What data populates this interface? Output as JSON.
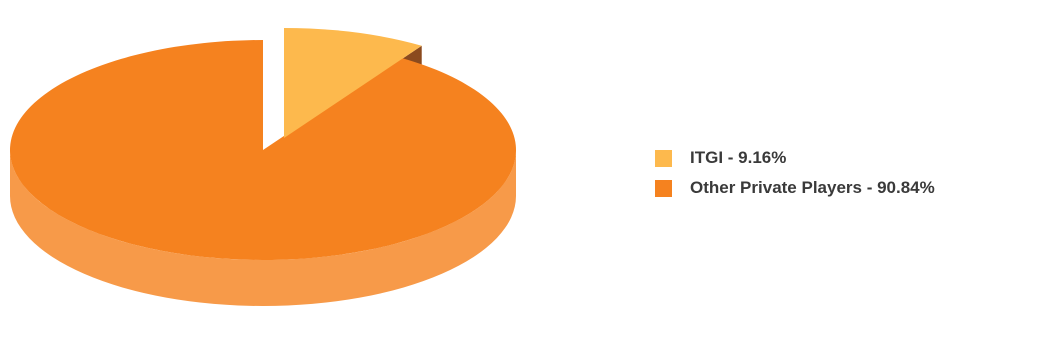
{
  "chart_data": {
    "type": "pie",
    "title": "",
    "three_d": true,
    "exploded_slice": "ITGI",
    "slices": [
      {
        "label": "ITGI",
        "value": 9.16,
        "color": "#FDB94D",
        "side_color": "#8B4A1E"
      },
      {
        "label": "Other Private Players",
        "value": 90.84,
        "color": "#F5821F",
        "side_color": "#F79A49"
      }
    ],
    "legend_placement": "right",
    "legend": [
      {
        "label": "ITGI - 9.16%",
        "color": "#FDB94D"
      },
      {
        "label": "Other Private Players - 90.84%",
        "color": "#F5821F"
      }
    ]
  }
}
